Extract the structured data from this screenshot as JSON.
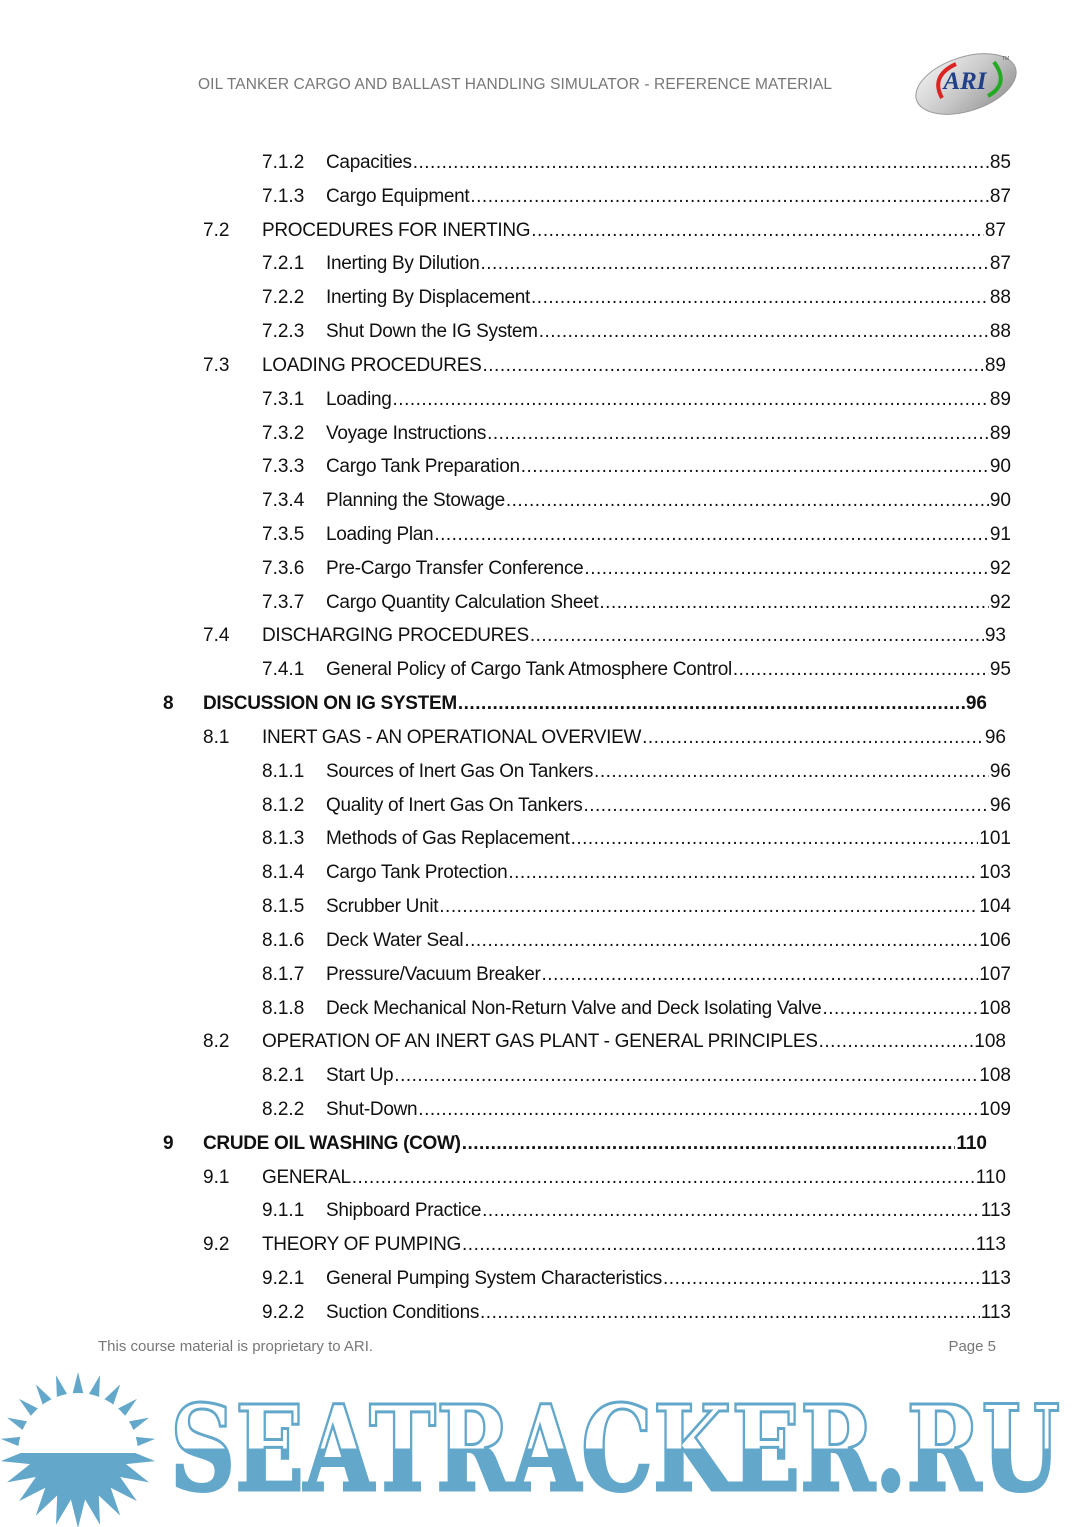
{
  "header": {
    "title": "OIL TANKER CARGO AND BALLAST HANDLING SIMULATOR - REFERENCE MATERIAL",
    "logo_text": "ARI"
  },
  "toc": [
    {
      "level": 3,
      "number": "7.1.2",
      "title": "Capacities",
      "page": "85"
    },
    {
      "level": 3,
      "number": "7.1.3",
      "title": "Cargo Equipment",
      "page": "87"
    },
    {
      "level": 2,
      "number": "7.2",
      "title": "PROCEDURES FOR INERTING",
      "page": "87"
    },
    {
      "level": 3,
      "number": "7.2.1",
      "title": "Inerting By Dilution",
      "page": "87"
    },
    {
      "level": 3,
      "number": "7.2.2",
      "title": "Inerting By Displacement",
      "page": "88"
    },
    {
      "level": 3,
      "number": "7.2.3",
      "title": "Shut Down the IG System",
      "page": "88"
    },
    {
      "level": 2,
      "number": "7.3",
      "title": "LOADING PROCEDURES",
      "page": "89"
    },
    {
      "level": 3,
      "number": "7.3.1",
      "title": "Loading",
      "page": "89"
    },
    {
      "level": 3,
      "number": "7.3.2",
      "title": "Voyage Instructions",
      "page": "89"
    },
    {
      "level": 3,
      "number": "7.3.3",
      "title": "Cargo Tank Preparation",
      "page": "90"
    },
    {
      "level": 3,
      "number": "7.3.4",
      "title": "Planning the Stowage",
      "page": "90"
    },
    {
      "level": 3,
      "number": "7.3.5",
      "title": "Loading Plan",
      "page": "91"
    },
    {
      "level": 3,
      "number": "7.3.6",
      "title": "Pre-Cargo Transfer Conference",
      "page": "92"
    },
    {
      "level": 3,
      "number": "7.3.7",
      "title": "Cargo Quantity Calculation Sheet",
      "page": "92"
    },
    {
      "level": 2,
      "number": "7.4",
      "title": "DISCHARGING PROCEDURES",
      "page": "93"
    },
    {
      "level": 3,
      "number": "7.4.1",
      "title": "General Policy of Cargo Tank Atmosphere Control",
      "page": "95"
    },
    {
      "level": 1,
      "number": "8",
      "title": "DISCUSSION ON IG SYSTEM",
      "page": "96"
    },
    {
      "level": 2,
      "number": "8.1",
      "title": "INERT GAS - AN OPERATIONAL OVERVIEW",
      "page": "96"
    },
    {
      "level": 3,
      "number": "8.1.1",
      "title": "Sources of Inert Gas On Tankers",
      "page": "96"
    },
    {
      "level": 3,
      "number": "8.1.2",
      "title": "Quality of Inert Gas On Tankers",
      "page": "96"
    },
    {
      "level": 3,
      "number": "8.1.3",
      "title": "Methods of Gas Replacement",
      "page": "101"
    },
    {
      "level": 3,
      "number": "8.1.4",
      "title": "Cargo Tank Protection",
      "page": "103"
    },
    {
      "level": 3,
      "number": "8.1.5",
      "title": "Scrubber Unit",
      "page": "104"
    },
    {
      "level": 3,
      "number": "8.1.6",
      "title": "Deck Water Seal",
      "page": "106"
    },
    {
      "level": 3,
      "number": "8.1.7",
      "title": "Pressure/Vacuum Breaker",
      "page": "107"
    },
    {
      "level": 3,
      "number": "8.1.8",
      "title": "Deck Mechanical Non-Return Valve and Deck Isolating Valve",
      "page": "108"
    },
    {
      "level": 2,
      "number": "8.2",
      "title": "OPERATION OF AN INERT GAS PLANT - GENERAL PRINCIPLES",
      "page": "108"
    },
    {
      "level": 3,
      "number": "8.2.1",
      "title": "Start Up",
      "page": "108"
    },
    {
      "level": 3,
      "number": "8.2.2",
      "title": "Shut-Down",
      "page": "109"
    },
    {
      "level": 1,
      "number": "9",
      "title": "CRUDE OIL WASHING (COW)",
      "page": "110"
    },
    {
      "level": 2,
      "number": "9.1",
      "title": "GENERAL",
      "page": "110"
    },
    {
      "level": 3,
      "number": "9.1.1",
      "title": "Shipboard Practice",
      "page": "113"
    },
    {
      "level": 2,
      "number": "9.2",
      "title": "THEORY OF PUMPING",
      "page": "113"
    },
    {
      "level": 3,
      "number": "9.2.1",
      "title": "General Pumping System Characteristics",
      "page": "113"
    },
    {
      "level": 3,
      "number": "9.2.2",
      "title": "Suction Conditions",
      "page": "113"
    }
  ],
  "footer": {
    "text": "This course material is proprietary to ARI.",
    "page": "Page 5"
  },
  "watermark": {
    "text": "SEATRACKER.RU",
    "color": "#63a8cb"
  }
}
